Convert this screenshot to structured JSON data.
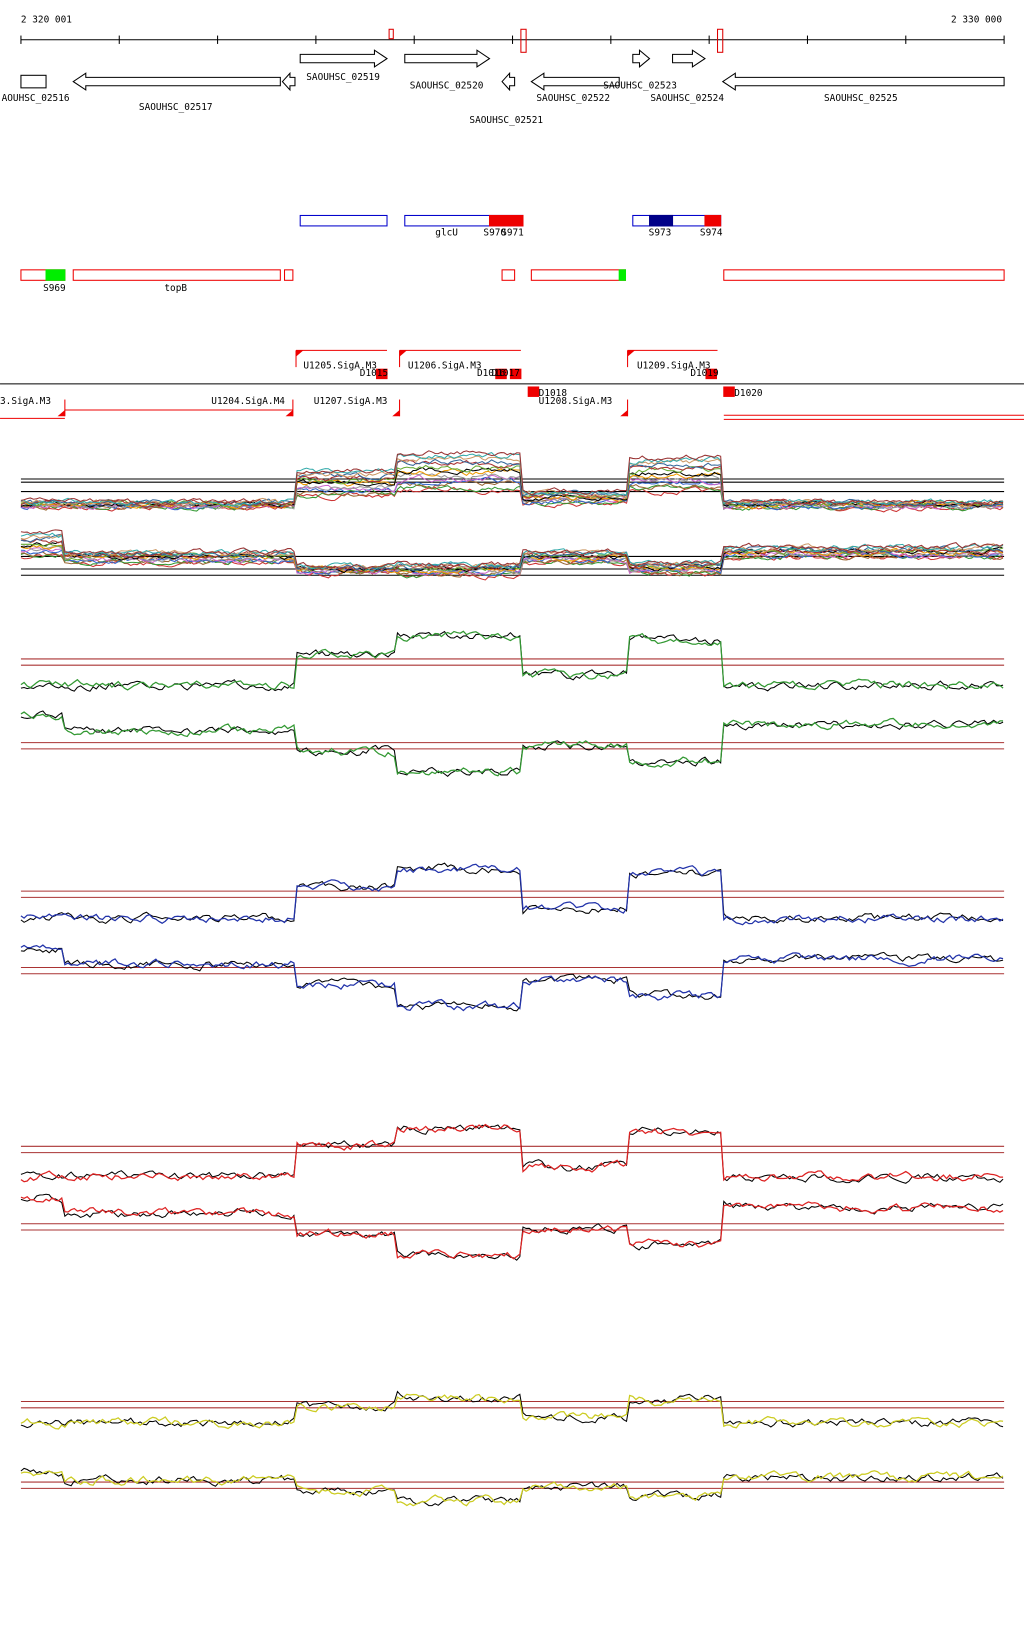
{
  "ruler": {
    "start": "2 320 001",
    "end": "2 330 000"
  },
  "genes": [
    "AOUHSC_02516",
    "SAOUHSC_02517",
    "SAOUHSC_02519",
    "SAOUHSC_02520",
    "SAOUHSC_02521",
    "SAOUHSC_02522",
    "SAOUHSC_02523",
    "SAOUHSC_02524",
    "SAOUHSC_02525"
  ],
  "features_top": [
    "glcU",
    "S970",
    "S971",
    "S973",
    "S974"
  ],
  "features_bottom": [
    "S969",
    "topB"
  ],
  "promoters": [
    "U1205.SigA.M3",
    "D1015",
    "U1206.SigA.M3",
    "D1016",
    "D1017",
    "U1209.SigA.M3",
    "D1019",
    "3.SigA.M3",
    "U1204.SigA.M4",
    "U1207.SigA.M3",
    "D1018",
    "U1208.SigA.M3",
    "D1020"
  ]
}
